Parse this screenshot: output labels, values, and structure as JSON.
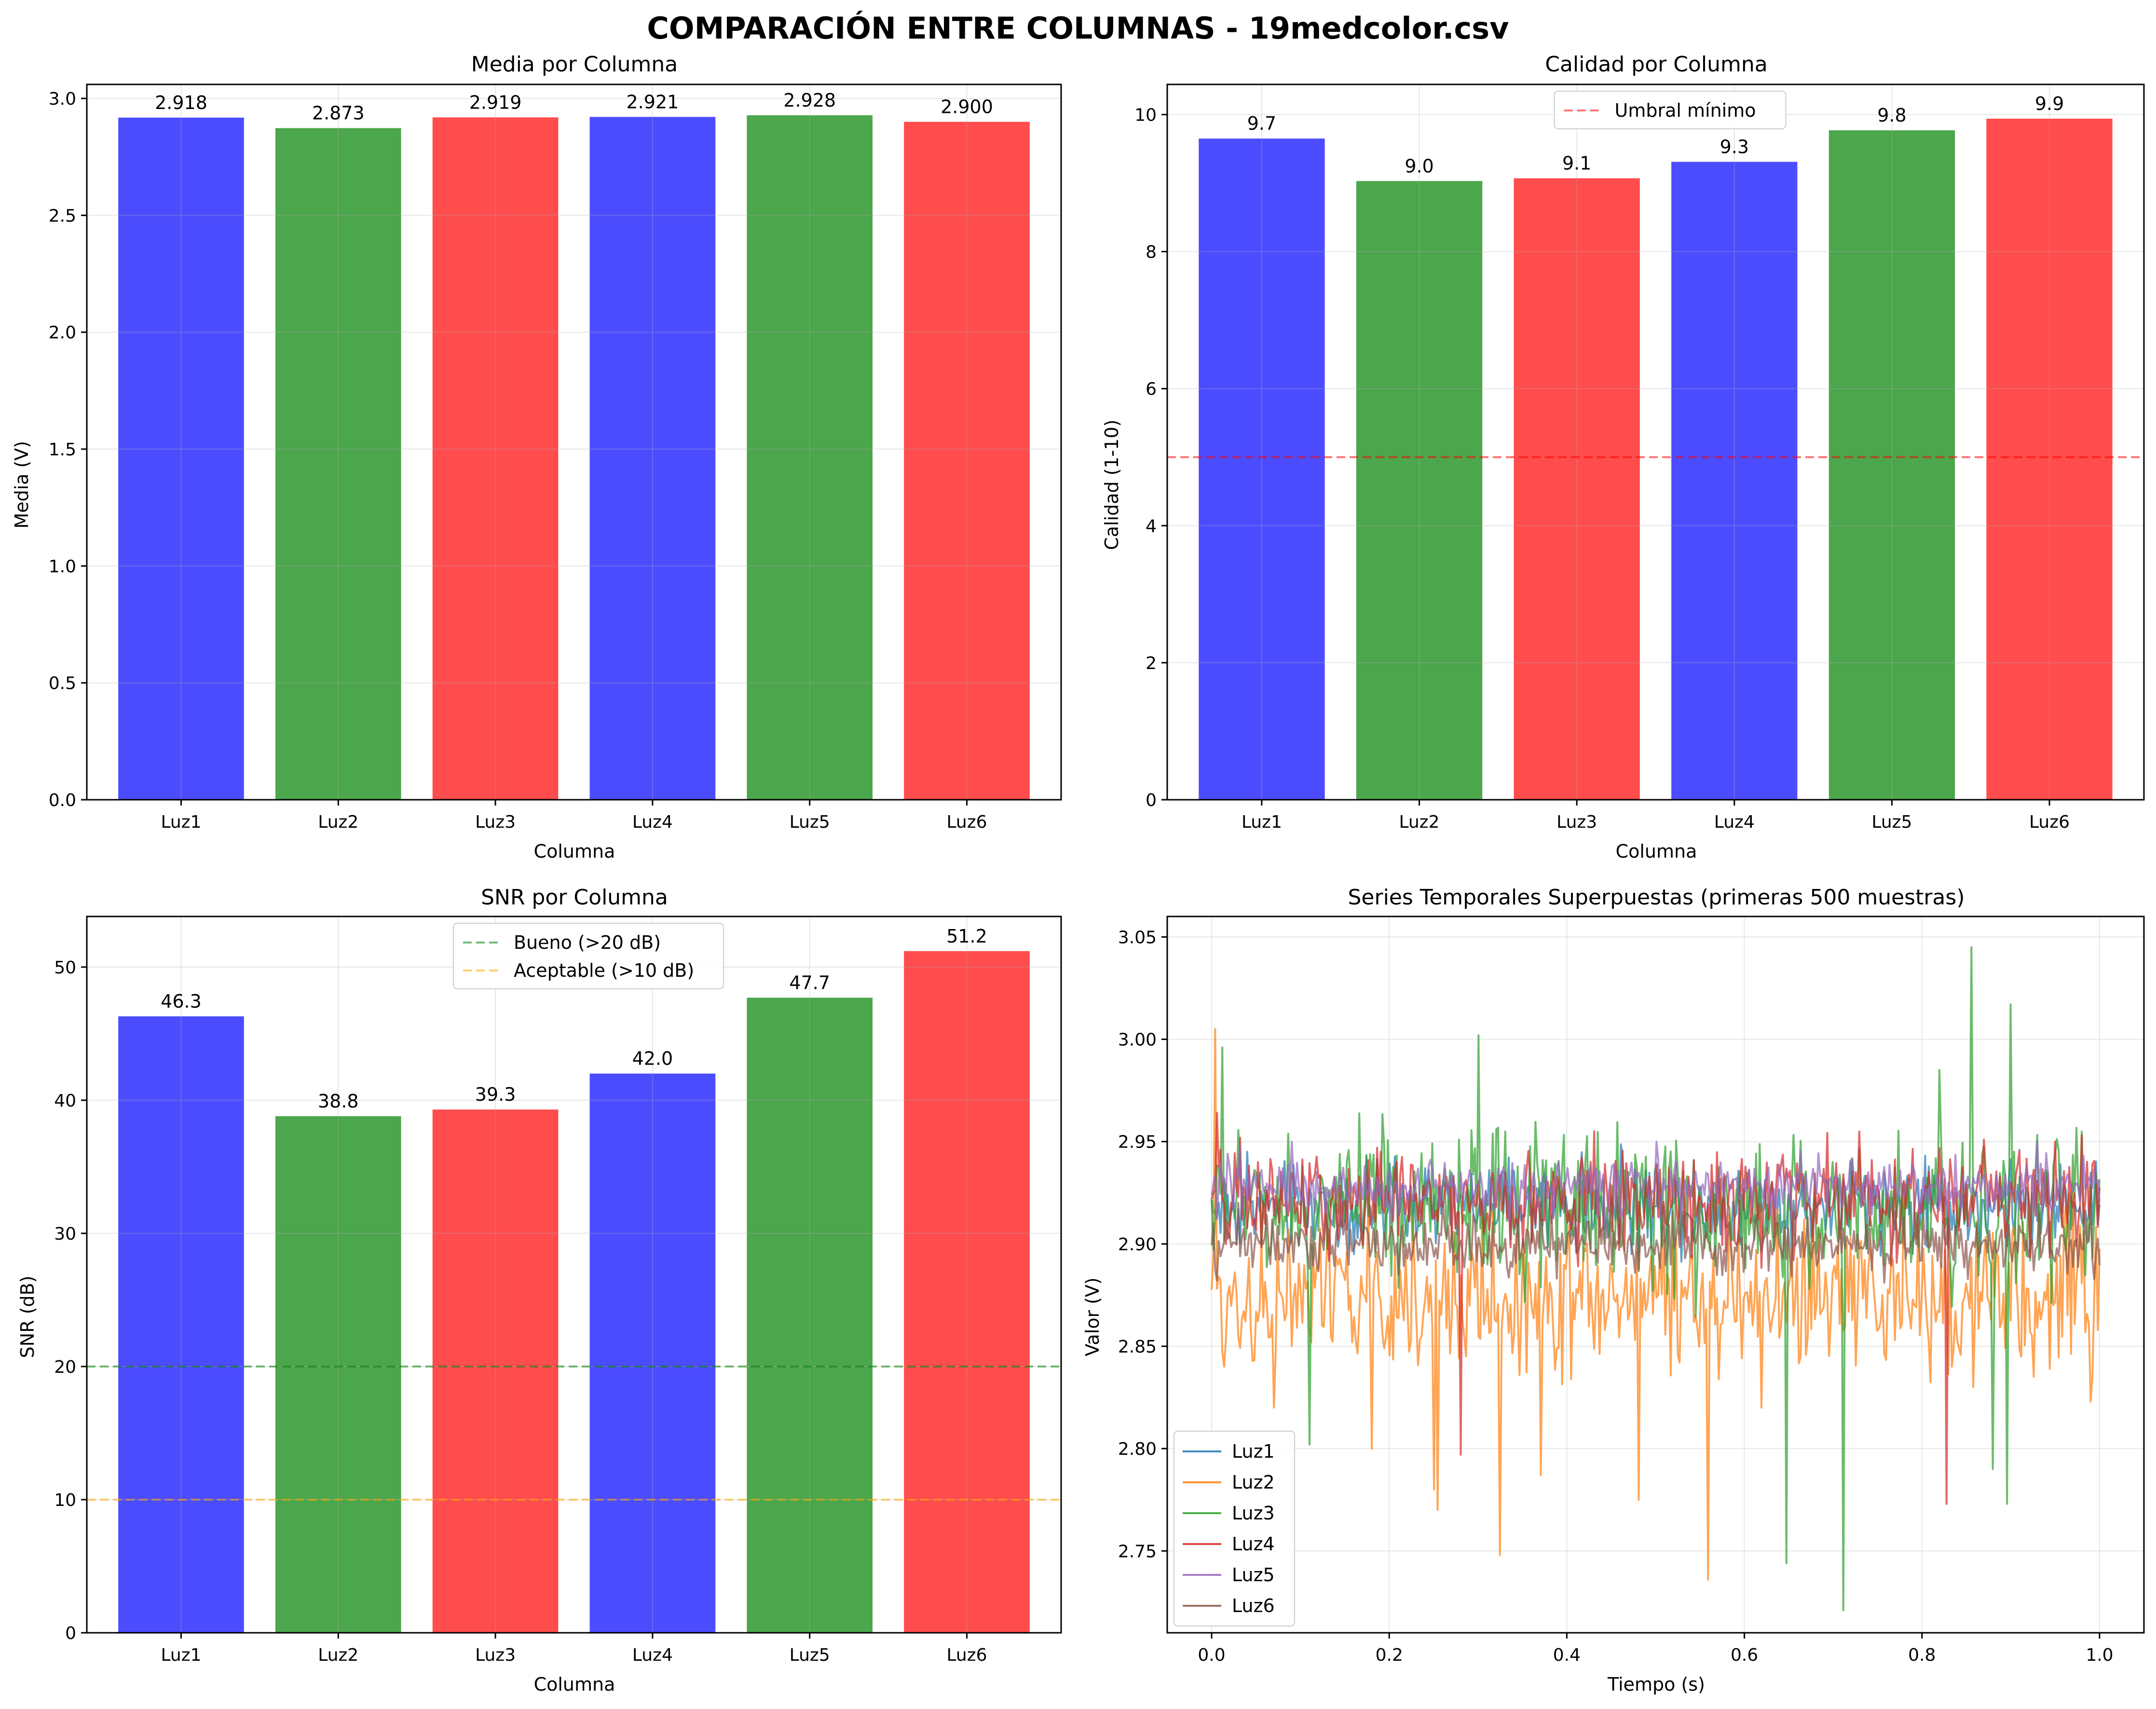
{
  "figure": {
    "title": "COMPARACIÓN ENTRE COLUMNAS - 19medcolor.csv"
  },
  "colors": {
    "blue": "#0000ff",
    "green": "#008000",
    "red": "#ff0000",
    "threshold_red": "#ff0000",
    "bueno_green": "#008000",
    "aceptable_orange": "#ffa500",
    "grid": "#b0b0b0",
    "series": [
      "#1f77b4",
      "#ff7f0e",
      "#2ca02c",
      "#d62728",
      "#9467bd",
      "#8c564b"
    ]
  },
  "chart_data": [
    {
      "id": "media",
      "type": "bar",
      "title": "Media por Columna",
      "xlabel": "Columna",
      "ylabel": "Media (V)",
      "categories": [
        "Luz1",
        "Luz2",
        "Luz3",
        "Luz4",
        "Luz5",
        "Luz6"
      ],
      "values": [
        2.918,
        2.873,
        2.919,
        2.921,
        2.928,
        2.9
      ],
      "labels": [
        "2.918",
        "2.873",
        "2.919",
        "2.921",
        "2.928",
        "2.900"
      ],
      "bar_colors": [
        "blue",
        "green",
        "red",
        "blue",
        "green",
        "red"
      ],
      "ylim": [
        0,
        3.06
      ],
      "yticks": [
        0.0,
        0.5,
        1.0,
        1.5,
        2.0,
        2.5,
        3.0
      ],
      "ytick_labels": [
        "0.0",
        "0.5",
        "1.0",
        "1.5",
        "2.0",
        "2.5",
        "3.0"
      ],
      "grid": true
    },
    {
      "id": "calidad",
      "type": "bar",
      "title": "Calidad por Columna",
      "xlabel": "Columna",
      "ylabel": "Calidad (1-10)",
      "categories": [
        "Luz1",
        "Luz2",
        "Luz3",
        "Luz4",
        "Luz5",
        "Luz6"
      ],
      "values": [
        9.65,
        9.03,
        9.07,
        9.31,
        9.77,
        9.94
      ],
      "labels": [
        "9.7",
        "9.0",
        "9.1",
        "9.3",
        "9.8",
        "9.9"
      ],
      "bar_colors": [
        "blue",
        "green",
        "red",
        "blue",
        "green",
        "red"
      ],
      "ylim": [
        0,
        10.44
      ],
      "yticks": [
        0,
        2,
        4,
        6,
        8,
        10
      ],
      "ytick_labels": [
        "0",
        "2",
        "4",
        "6",
        "8",
        "10"
      ],
      "hlines": [
        {
          "y": 5,
          "color": "threshold_red",
          "label": "Umbral mínimo"
        }
      ],
      "legend": "upper center",
      "grid": true
    },
    {
      "id": "snr",
      "type": "bar",
      "title": "SNR por Columna",
      "xlabel": "Columna",
      "ylabel": "SNR (dB)",
      "categories": [
        "Luz1",
        "Luz2",
        "Luz3",
        "Luz4",
        "Luz5",
        "Luz6"
      ],
      "values": [
        46.3,
        38.8,
        39.3,
        42.0,
        47.7,
        51.2
      ],
      "labels": [
        "46.3",
        "38.8",
        "39.3",
        "42.0",
        "47.7",
        "51.2"
      ],
      "bar_colors": [
        "blue",
        "green",
        "red",
        "blue",
        "green",
        "red"
      ],
      "ylim": [
        0,
        53.8
      ],
      "yticks": [
        0,
        10,
        20,
        30,
        40,
        50
      ],
      "ytick_labels": [
        "0",
        "10",
        "20",
        "30",
        "40",
        "50"
      ],
      "hlines": [
        {
          "y": 20,
          "color": "bueno_green",
          "label": "Bueno (>20 dB)"
        },
        {
          "y": 10,
          "color": "aceptable_orange",
          "label": "Aceptable (>10 dB)"
        }
      ],
      "legend": "upper center",
      "grid": true
    },
    {
      "id": "series",
      "type": "line",
      "title": "Series Temporales Superpuestas (primeras 500 muestras)",
      "xlabel": "Tiempo (s)",
      "ylabel": "Valor (V)",
      "xlim": [
        -0.05,
        1.05
      ],
      "ylim": [
        2.71,
        3.06
      ],
      "xticks": [
        0.0,
        0.2,
        0.4,
        0.6,
        0.8,
        1.0
      ],
      "xtick_labels": [
        "0.0",
        "0.2",
        "0.4",
        "0.6",
        "0.8",
        "1.0"
      ],
      "yticks": [
        2.75,
        2.8,
        2.85,
        2.9,
        2.95,
        3.0,
        3.05
      ],
      "ytick_labels": [
        "2.75",
        "2.80",
        "2.85",
        "2.90",
        "2.95",
        "3.00",
        "3.05"
      ],
      "legend": "lower left",
      "grid": true,
      "samples": 500,
      "series": [
        {
          "name": "Luz1",
          "mean": 2.918,
          "noise": 0.01,
          "spikes": [
            [
              0.04,
              2.945
            ],
            [
              0.33,
              2.935
            ],
            [
              0.72,
              2.94
            ],
            [
              0.96,
              2.93
            ]
          ]
        },
        {
          "name": "Luz2",
          "mean": 2.873,
          "noise": 0.018,
          "spikes": [
            [
              0.004,
              3.005
            ],
            [
              0.07,
              2.82
            ],
            [
              0.18,
              2.8
            ],
            [
              0.25,
              2.78
            ],
            [
              0.255,
              2.77
            ],
            [
              0.325,
              2.748
            ],
            [
              0.37,
              2.787
            ],
            [
              0.48,
              2.775
            ],
            [
              0.56,
              2.736
            ],
            [
              0.62,
              2.82
            ],
            [
              0.78,
              2.93
            ],
            [
              0.97,
              2.93
            ],
            [
              0.99,
              2.823
            ]
          ]
        },
        {
          "name": "Luz3",
          "mean": 2.919,
          "noise": 0.018,
          "spikes": [
            [
              0.012,
              2.996
            ],
            [
              0.11,
              2.802
            ],
            [
              0.3,
              3.002
            ],
            [
              0.648,
              2.744
            ],
            [
              0.7,
              2.94
            ],
            [
              0.712,
              2.721
            ],
            [
              0.82,
              2.985
            ],
            [
              0.855,
              3.045
            ],
            [
              0.88,
              2.79
            ],
            [
              0.895,
              2.773
            ],
            [
              0.9,
              3.017
            ]
          ]
        },
        {
          "name": "Luz4",
          "mean": 2.921,
          "noise": 0.012,
          "spikes": [
            [
              0.006,
              2.964
            ],
            [
              0.28,
              2.797
            ],
            [
              0.43,
              2.955
            ],
            [
              0.73,
              2.955
            ],
            [
              0.828,
              2.773
            ],
            [
              0.95,
              2.95
            ]
          ]
        },
        {
          "name": "Luz5",
          "mean": 2.928,
          "noise": 0.007,
          "spikes": [
            [
              0.09,
              2.95
            ],
            [
              0.5,
              2.95
            ],
            [
              0.93,
              2.95
            ]
          ]
        },
        {
          "name": "Luz6",
          "mean": 2.9,
          "noise": 0.007,
          "spikes": [
            [
              0.03,
              2.92
            ],
            [
              0.55,
              2.92
            ]
          ]
        }
      ]
    }
  ]
}
